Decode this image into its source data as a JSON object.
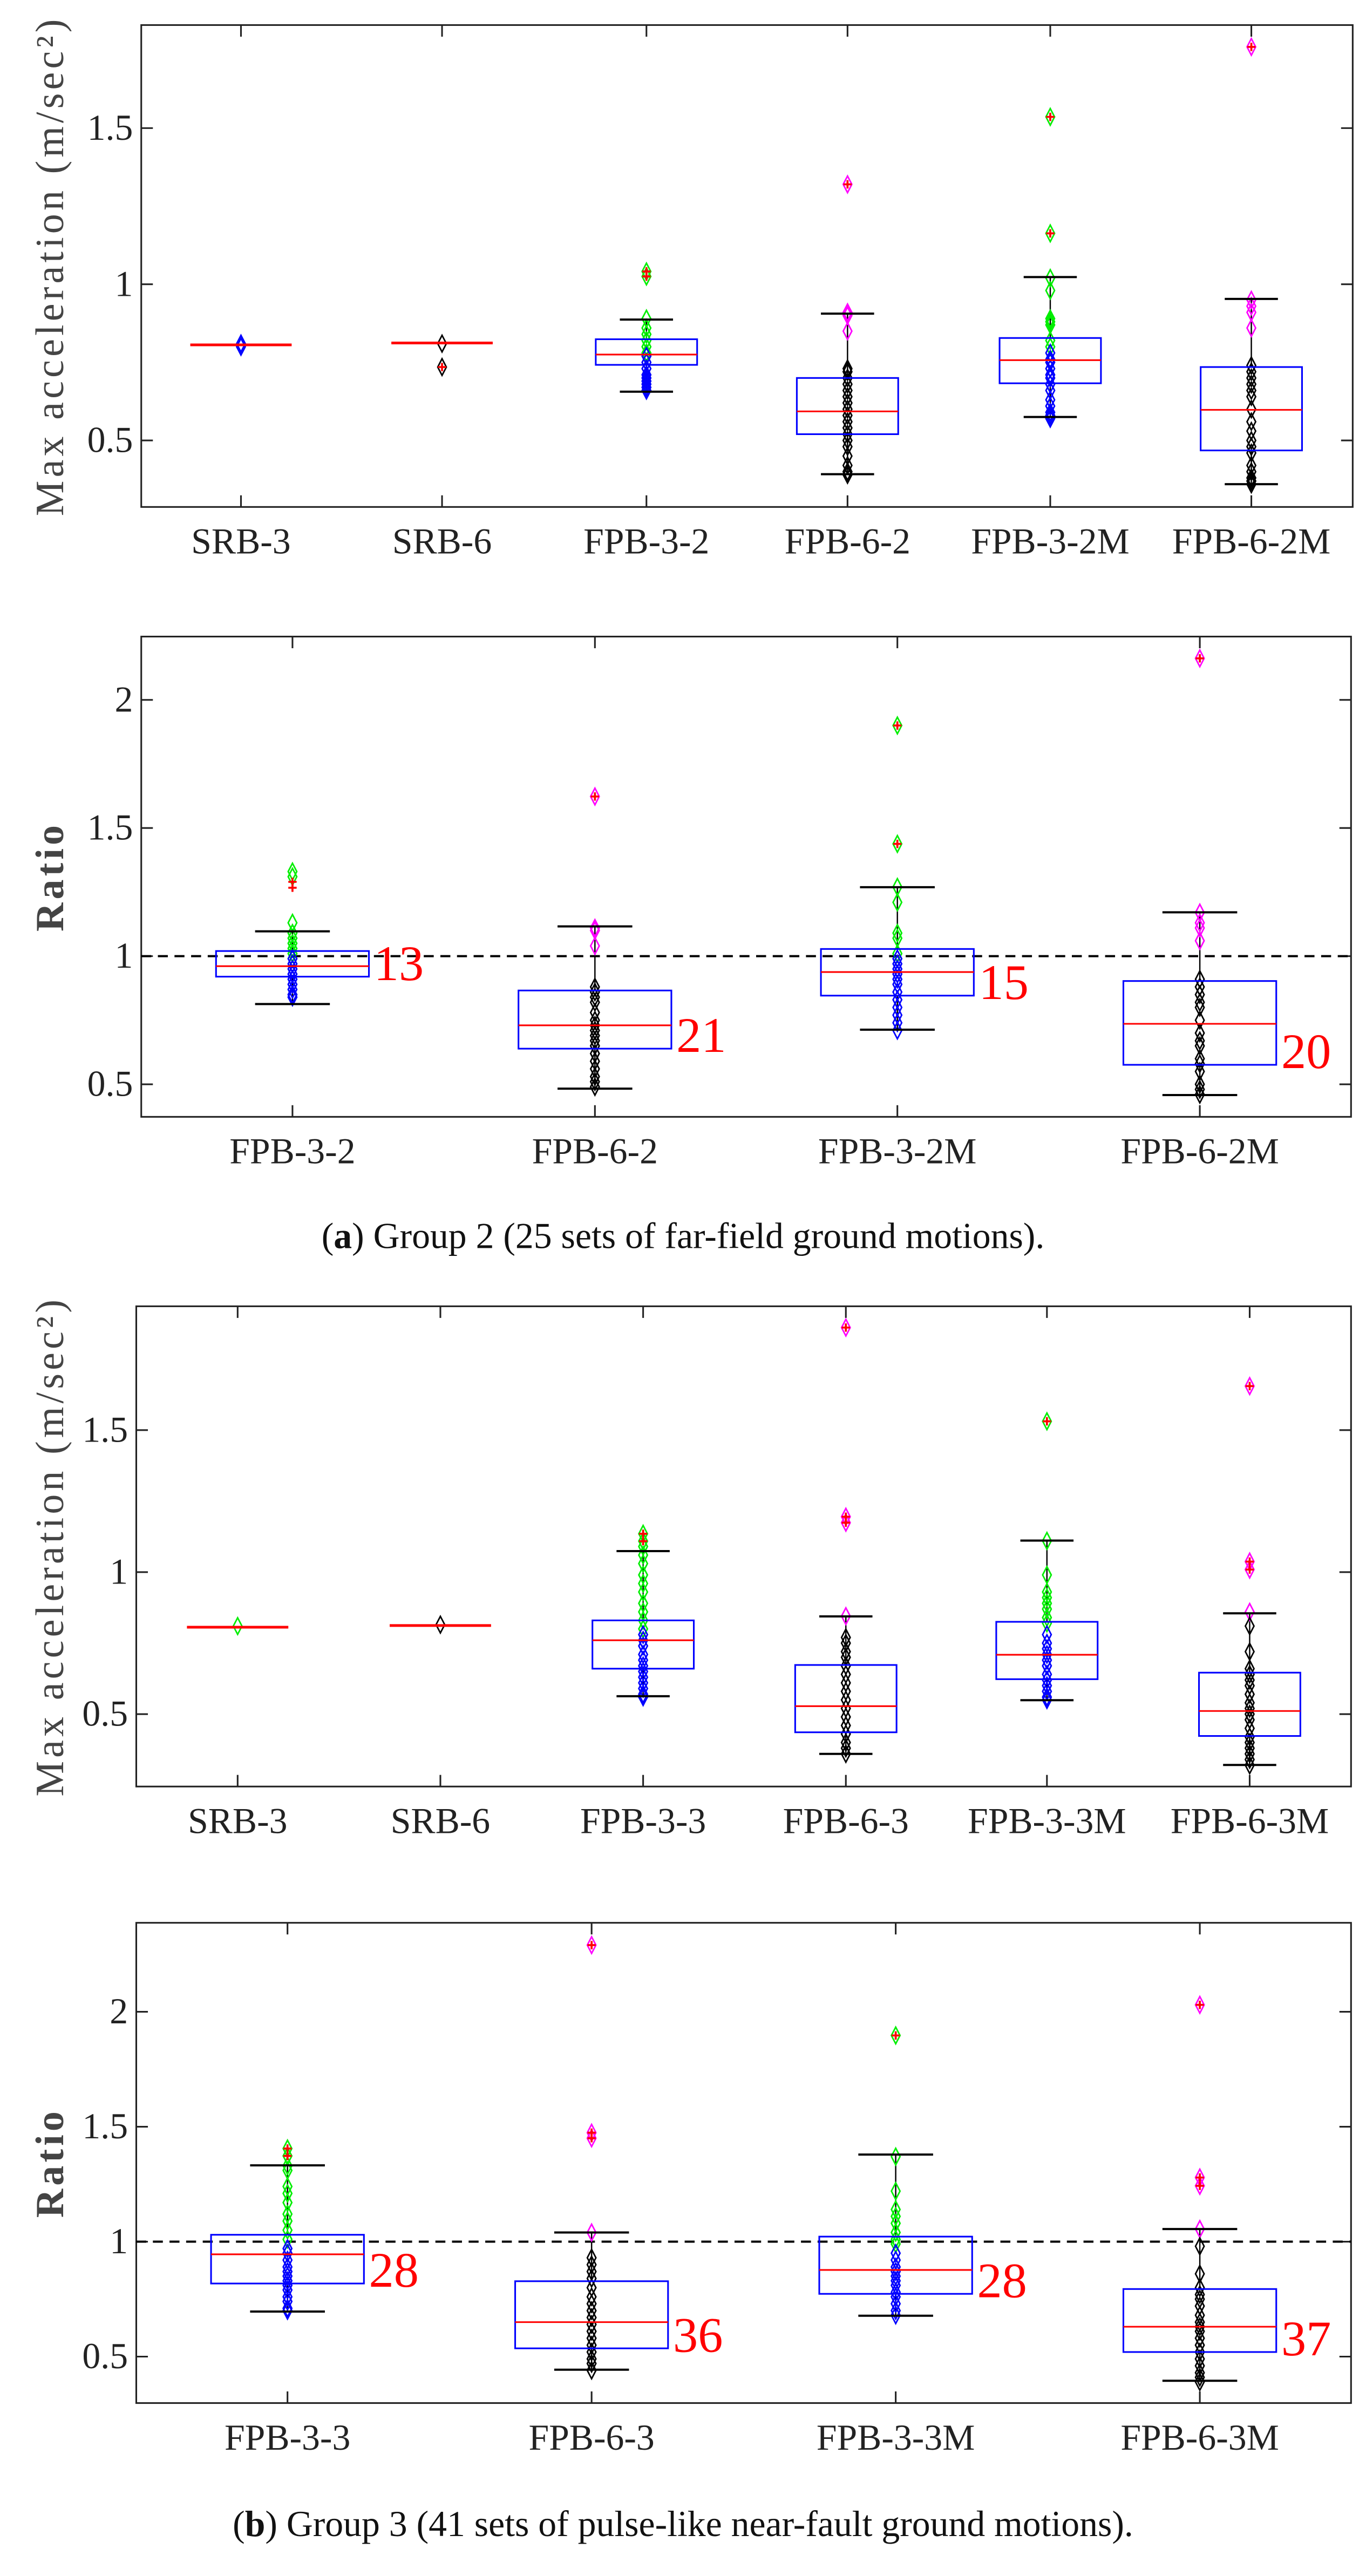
{
  "colors": {
    "box": "#0000ff",
    "median": "#ff0000",
    "whisker": "#000000",
    "outlier": "#ff0000",
    "green": "#00ee00",
    "blue": "#0000ff",
    "black": "#000000",
    "magenta": "#ff00ff",
    "reference": "#000000"
  },
  "chart_data": [
    {
      "type": "box",
      "panel": "a-top",
      "ylabel": "Max acceleration (m/sec²)",
      "ylim": [
        0.287,
        1.83
      ],
      "yticks": [
        0.5,
        1,
        1.5
      ],
      "ytick_labels": [
        "0.5",
        "1",
        "1.5"
      ],
      "categories": [
        "SRB-3",
        "SRB-6",
        "FPB-3-2",
        "FPB-6-2",
        "FPB-3-2M",
        "FPB-6-2M"
      ],
      "boxes": [
        {
          "median": 0.806,
          "q1": 0.806,
          "q3": 0.806,
          "whisker_low": 0.806,
          "whisker_high": 0.806,
          "outliers": [],
          "points": [
            {
              "c": "blue",
              "v": [
                0.8,
                0.81
              ]
            }
          ]
        },
        {
          "median": 0.812,
          "q1": 0.812,
          "q3": 0.812,
          "whisker_low": 0.812,
          "whisker_high": 0.812,
          "outliers": [
            0.735
          ],
          "points": [
            {
              "c": "black",
              "v": [
                0.81,
                0.735
              ]
            }
          ]
        },
        {
          "median": 0.775,
          "q1": 0.742,
          "q3": 0.824,
          "whisker_low": 0.656,
          "whisker_high": 0.887,
          "outliers": [
            1.041,
            1.025
          ],
          "points": [
            {
              "c": "green",
              "v": [
                1.041,
                1.025,
                0.89,
                0.86,
                0.84,
                0.82,
                0.8,
                0.78
              ]
            },
            {
              "c": "blue",
              "v": [
                0.77,
                0.75,
                0.73,
                0.71,
                0.7,
                0.69,
                0.68,
                0.67,
                0.66
              ]
            }
          ]
        },
        {
          "median": 0.593,
          "q1": 0.52,
          "q3": 0.7,
          "whisker_low": 0.392,
          "whisker_high": 0.906,
          "outliers": [
            1.32
          ],
          "points": [
            {
              "c": "magenta",
              "v": [
                1.32,
                0.91,
                0.9,
                0.85
              ]
            },
            {
              "c": "black",
              "v": [
                0.73,
                0.72,
                0.7,
                0.68,
                0.66,
                0.64,
                0.62,
                0.6,
                0.58,
                0.56,
                0.54,
                0.52,
                0.5,
                0.48,
                0.45,
                0.42,
                0.4,
                0.39
              ]
            }
          ]
        },
        {
          "median": 0.757,
          "q1": 0.683,
          "q3": 0.828,
          "whisker_low": 0.575,
          "whisker_high": 1.023,
          "outliers": [
            1.536,
            1.163
          ],
          "points": [
            {
              "c": "green",
              "v": [
                1.536,
                1.163,
                1.02,
                0.98,
                0.89,
                0.88,
                0.87,
                0.82,
                0.8
              ]
            },
            {
              "c": "blue",
              "v": [
                0.78,
                0.76,
                0.75,
                0.73,
                0.71,
                0.7,
                0.68,
                0.66,
                0.63,
                0.61,
                0.59,
                0.58,
                0.57
              ]
            }
          ]
        },
        {
          "median": 0.598,
          "q1": 0.468,
          "q3": 0.735,
          "whisker_low": 0.36,
          "whisker_high": 0.953,
          "outliers": [
            1.76
          ],
          "points": [
            {
              "c": "magenta",
              "v": [
                1.76,
                0.95,
                0.93,
                0.91,
                0.86
              ]
            },
            {
              "c": "black",
              "v": [
                0.74,
                0.72,
                0.7,
                0.68,
                0.66,
                0.64,
                0.6,
                0.56,
                0.53,
                0.5,
                0.48,
                0.46,
                0.42,
                0.4,
                0.38,
                0.37,
                0.36
              ]
            }
          ]
        }
      ]
    },
    {
      "type": "box",
      "panel": "a-bottom",
      "ylabel": "Ratio",
      "ylim": [
        0.373,
        2.247
      ],
      "yticks": [
        0.5,
        1,
        1.5,
        2
      ],
      "ytick_labels": [
        "0.5",
        "1",
        "1.5",
        "2"
      ],
      "reference_line": 1,
      "categories": [
        "FPB-3-2",
        "FPB-6-2",
        "FPB-3-2M",
        "FPB-6-2M"
      ],
      "count_labels": [
        "13",
        "21",
        "15",
        "20"
      ],
      "boxes": [
        {
          "median": 0.961,
          "q1": 0.92,
          "q3": 1.02,
          "whisker_low": 0.813,
          "whisker_high": 1.097,
          "outliers": [
            1.29,
            1.267
          ],
          "points": [
            {
              "c": "green",
              "v": [
                1.33,
                1.31,
                1.13,
                1.09,
                1.07,
                1.05,
                1.03,
                1.01
              ]
            },
            {
              "c": "blue",
              "v": [
                0.99,
                0.97,
                0.95,
                0.93,
                0.91,
                0.89,
                0.87,
                0.85,
                0.84
              ]
            }
          ]
        },
        {
          "median": 0.73,
          "q1": 0.639,
          "q3": 0.866,
          "whisker_low": 0.483,
          "whisker_high": 1.116,
          "outliers": [
            1.623
          ],
          "points": [
            {
              "c": "magenta",
              "v": [
                1.623,
                1.11,
                1.1,
                1.04
              ]
            },
            {
              "c": "black",
              "v": [
                0.88,
                0.86,
                0.84,
                0.82,
                0.78,
                0.75,
                0.73,
                0.71,
                0.69,
                0.67,
                0.65,
                0.62,
                0.59,
                0.56,
                0.53,
                0.51,
                0.49
              ]
            }
          ]
        },
        {
          "median": 0.938,
          "q1": 0.846,
          "q3": 1.028,
          "whisker_low": 0.713,
          "whisker_high": 1.269,
          "outliers": [
            1.9,
            1.438
          ],
          "points": [
            {
              "c": "green",
              "v": [
                1.9,
                1.438,
                1.27,
                1.21,
                1.09,
                1.07,
                1.01
              ]
            },
            {
              "c": "blue",
              "v": [
                0.99,
                0.97,
                0.95,
                0.93,
                0.91,
                0.89,
                0.86,
                0.83,
                0.8,
                0.77,
                0.74,
                0.71
              ]
            }
          ]
        },
        {
          "median": 0.736,
          "q1": 0.576,
          "q3": 0.903,
          "whisker_low": 0.458,
          "whisker_high": 1.171,
          "outliers": [
            2.162
          ],
          "points": [
            {
              "c": "magenta",
              "v": [
                2.162,
                1.17,
                1.13,
                1.11,
                1.06
              ]
            },
            {
              "c": "black",
              "v": [
                0.91,
                0.88,
                0.85,
                0.82,
                0.8,
                0.75,
                0.7,
                0.67,
                0.65,
                0.6,
                0.58,
                0.55,
                0.5,
                0.48,
                0.46
              ]
            }
          ]
        }
      ]
    },
    {
      "type": "box",
      "panel": "b-top",
      "ylabel": "Max acceleration (m/sec²)",
      "ylim": [
        0.245,
        1.936
      ],
      "yticks": [
        0.5,
        1,
        1.5
      ],
      "ytick_labels": [
        "0.5",
        "1",
        "1.5"
      ],
      "categories": [
        "SRB-3",
        "SRB-6",
        "FPB-3-3",
        "FPB-6-3",
        "FPB-3-3M",
        "FPB-6-3M"
      ],
      "boxes": [
        {
          "median": 0.806,
          "q1": 0.806,
          "q3": 0.806,
          "whisker_low": 0.806,
          "whisker_high": 0.806,
          "outliers": [],
          "points": [
            {
              "c": "green",
              "v": [
                0.81
              ]
            }
          ]
        },
        {
          "median": 0.812,
          "q1": 0.812,
          "q3": 0.812,
          "whisker_low": 0.812,
          "whisker_high": 0.812,
          "outliers": [],
          "points": [
            {
              "c": "black",
              "v": [
                0.815
              ]
            }
          ]
        },
        {
          "median": 0.76,
          "q1": 0.66,
          "q3": 0.83,
          "whisker_low": 0.563,
          "whisker_high": 1.074,
          "outliers": [
            1.135,
            1.109
          ],
          "points": [
            {
              "c": "green",
              "v": [
                1.135,
                1.109,
                1.09,
                1.06,
                1.03,
                0.99,
                0.96,
                0.93,
                0.89,
                0.86,
                0.83,
                0.8
              ]
            },
            {
              "c": "blue",
              "v": [
                0.78,
                0.76,
                0.74,
                0.71,
                0.69,
                0.67,
                0.65,
                0.63,
                0.61,
                0.59,
                0.57,
                0.56
              ]
            }
          ]
        },
        {
          "median": 0.528,
          "q1": 0.436,
          "q3": 0.673,
          "whisker_low": 0.36,
          "whisker_high": 0.844,
          "outliers": [
            1.861,
            1.195,
            1.174
          ],
          "points": [
            {
              "c": "magenta",
              "v": [
                1.861,
                1.195,
                1.174,
                0.845
              ]
            },
            {
              "c": "black",
              "v": [
                0.77,
                0.75,
                0.72,
                0.7,
                0.67,
                0.64,
                0.61,
                0.58,
                0.55,
                0.52,
                0.49,
                0.46,
                0.43,
                0.4,
                0.38,
                0.36
              ]
            }
          ]
        },
        {
          "median": 0.709,
          "q1": 0.623,
          "q3": 0.825,
          "whisker_low": 0.549,
          "whisker_high": 1.111,
          "outliers": [
            1.531
          ],
          "points": [
            {
              "c": "green",
              "v": [
                1.531,
                1.11,
                0.99,
                0.93,
                0.91,
                0.89,
                0.87,
                0.84,
                0.82
              ]
            },
            {
              "c": "blue",
              "v": [
                0.78,
                0.75,
                0.73,
                0.71,
                0.69,
                0.67,
                0.64,
                0.62,
                0.6,
                0.58,
                0.56,
                0.55
              ]
            }
          ]
        },
        {
          "median": 0.511,
          "q1": 0.423,
          "q3": 0.646,
          "whisker_low": 0.321,
          "whisker_high": 0.855,
          "outliers": [
            1.655,
            1.037,
            1.009
          ],
          "points": [
            {
              "c": "magenta",
              "v": [
                1.655,
                1.037,
                1.009,
                0.86
              ]
            },
            {
              "c": "black",
              "v": [
                0.81,
                0.72,
                0.66,
                0.64,
                0.62,
                0.6,
                0.57,
                0.54,
                0.52,
                0.5,
                0.48,
                0.45,
                0.42,
                0.4,
                0.38,
                0.36,
                0.34,
                0.32
              ]
            }
          ]
        }
      ]
    },
    {
      "type": "box",
      "panel": "b-bottom",
      "ylabel": "Ratio",
      "ylim": [
        0.298,
        2.387
      ],
      "yticks": [
        0.5,
        1,
        1.5,
        2
      ],
      "ytick_labels": [
        "0.5",
        "1",
        "1.5",
        "2"
      ],
      "reference_line": 1,
      "categories": [
        "FPB-3-3",
        "FPB-6-3",
        "FPB-3-3M",
        "FPB-6-3M"
      ],
      "count_labels": [
        "28",
        "36",
        "28",
        "37"
      ],
      "boxes": [
        {
          "median": 0.945,
          "q1": 0.818,
          "q3": 1.03,
          "whisker_low": 0.696,
          "whisker_high": 1.332,
          "outliers": [
            1.405,
            1.373
          ],
          "points": [
            {
              "c": "green",
              "v": [
                1.405,
                1.373,
                1.33,
                1.31,
                1.24,
                1.21,
                1.17,
                1.12,
                1.09,
                1.05,
                1.01
              ]
            },
            {
              "c": "blue",
              "v": [
                0.97,
                0.95,
                0.92,
                0.89,
                0.87,
                0.85,
                0.83,
                0.81,
                0.79,
                0.76,
                0.74,
                0.71,
                0.7
              ]
            }
          ]
        },
        {
          "median": 0.65,
          "q1": 0.536,
          "q3": 0.828,
          "whisker_low": 0.443,
          "whisker_high": 1.04,
          "outliers": [
            2.29,
            1.474,
            1.45
          ],
          "points": [
            {
              "c": "magenta",
              "v": [
                2.29,
                1.474,
                1.45,
                1.04
              ]
            },
            {
              "c": "black",
              "v": [
                0.93,
                0.9,
                0.87,
                0.84,
                0.8,
                0.76,
                0.73,
                0.7,
                0.67,
                0.64,
                0.61,
                0.58,
                0.55,
                0.52,
                0.49,
                0.47,
                0.44
              ]
            }
          ]
        },
        {
          "median": 0.877,
          "q1": 0.773,
          "q3": 1.022,
          "whisker_low": 0.678,
          "whisker_high": 1.379,
          "outliers": [
            1.897
          ],
          "points": [
            {
              "c": "green",
              "v": [
                1.897,
                1.37,
                1.22,
                1.14,
                1.11,
                1.08,
                1.04,
                1.01,
                0.99
              ]
            },
            {
              "c": "blue",
              "v": [
                0.95,
                0.92,
                0.89,
                0.87,
                0.85,
                0.83,
                0.81,
                0.78,
                0.76,
                0.73,
                0.7,
                0.68
              ]
            }
          ]
        },
        {
          "median": 0.63,
          "q1": 0.52,
          "q3": 0.794,
          "whisker_low": 0.395,
          "whisker_high": 1.055,
          "outliers": [
            2.03,
            1.279,
            1.243
          ],
          "points": [
            {
              "c": "magenta",
              "v": [
                2.03,
                1.279,
                1.243,
                1.055
              ]
            },
            {
              "c": "black",
              "v": [
                0.98,
                0.86,
                0.8,
                0.77,
                0.75,
                0.72,
                0.68,
                0.65,
                0.63,
                0.61,
                0.58,
                0.55,
                0.52,
                0.49,
                0.46,
                0.43,
                0.41,
                0.39
              ]
            }
          ]
        }
      ]
    }
  ],
  "captions": [
    {
      "label": "a",
      "text": "Group 2 (25 sets of far-field ground motions)."
    },
    {
      "label": "b",
      "text": "Group 3 (41 sets of pulse-like near-fault ground motions)."
    }
  ]
}
